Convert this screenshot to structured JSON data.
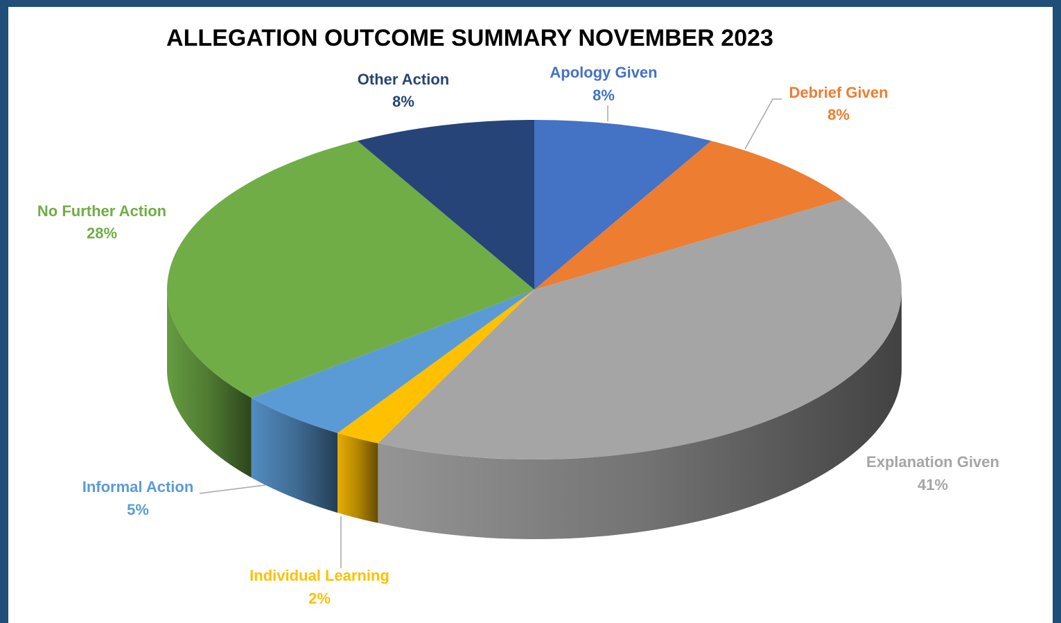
{
  "chart_data": {
    "type": "pie",
    "title": "ALLEGATION OUTCOME SUMMARY NOVEMBER 2023",
    "categories": [
      "Apology Given",
      "Debrief Given",
      "Explanation Given",
      "Individual Learning",
      "Informal Action",
      "No Further Action",
      "Other Action"
    ],
    "values": [
      8,
      8,
      41,
      2,
      5,
      28,
      8
    ],
    "value_labels": [
      "8%",
      "8%",
      "41%",
      "2%",
      "5%",
      "28%",
      "8%"
    ],
    "colors": [
      "#4472c4",
      "#ed7d31",
      "#a5a5a5",
      "#ffc000",
      "#5b9bd5",
      "#70ad47",
      "#264478"
    ]
  }
}
